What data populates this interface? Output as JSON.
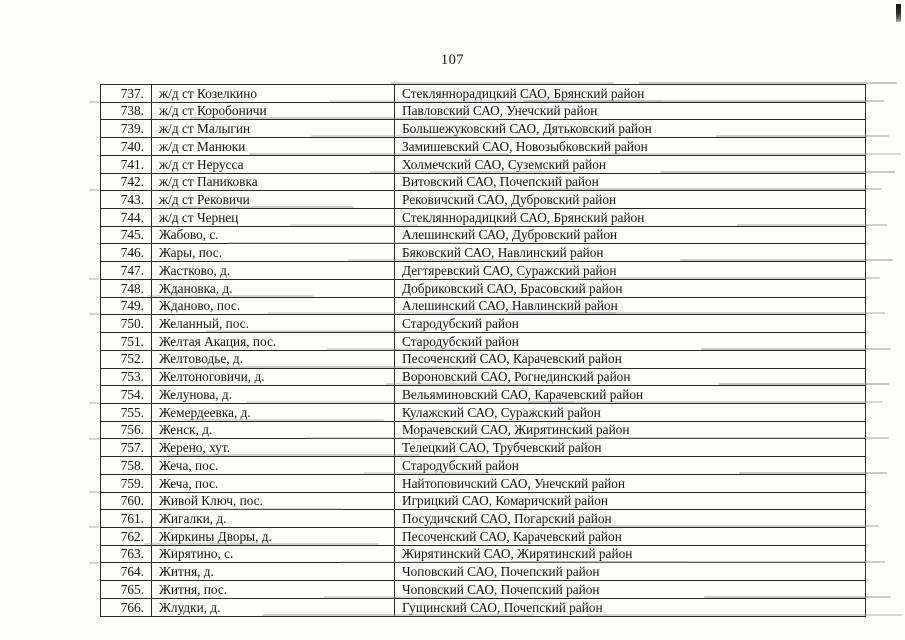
{
  "page": {
    "number": "107"
  },
  "table": {
    "rows": [
      {
        "num": "737.",
        "name": "ж/д ст Козелкино",
        "district": "Стекляннорадицкий САО, Брянский район"
      },
      {
        "num": "738.",
        "name": "ж/д ст Коробоничи",
        "district": "Павловский САО, Унечский район"
      },
      {
        "num": "739.",
        "name": "ж/д ст Малыгин",
        "district": "Большежуковский САО, Дятьковский район"
      },
      {
        "num": "740.",
        "name": "ж/д ст Манюки",
        "district": "Замишевский САО, Новозыбковский район"
      },
      {
        "num": "741.",
        "name": "ж/д ст Нерусса",
        "district": "Холмечский САО, Суземский район"
      },
      {
        "num": "742.",
        "name": "ж/д ст Паниковка",
        "district": "Витовский САО, Почепский район"
      },
      {
        "num": "743.",
        "name": "ж/д ст Рековичи",
        "district": "Рековичский САО, Дубровский район"
      },
      {
        "num": "744.",
        "name": "ж/д ст Чернец",
        "district": "Стекляннорадицкий САО, Брянский район"
      },
      {
        "num": "745.",
        "name": "Жабово, с.",
        "district": "Алешинский САО, Дубровский район"
      },
      {
        "num": "746.",
        "name": "Жары, пос.",
        "district": "Бяковский САО, Навлинский район"
      },
      {
        "num": "747.",
        "name": "Жастково, д.",
        "district": "Дегтяревский САО, Суражский район"
      },
      {
        "num": "748.",
        "name": "Ждановка, д.",
        "district": "Добриковский САО, Брасовский район"
      },
      {
        "num": "749.",
        "name": "Жданово, пос.",
        "district": "Алешинский САО, Навлинский район"
      },
      {
        "num": "750.",
        "name": "Желанный, пос.",
        "district": "Стародубский район"
      },
      {
        "num": "751.",
        "name": "Желтая Акация, пос.",
        "district": "Стародубский район"
      },
      {
        "num": "752.",
        "name": "Желтоводье, д.",
        "district": "Песоченский САО, Карачевский район"
      },
      {
        "num": "753.",
        "name": "Желтоноговичи, д.",
        "district": "Вороновский САО, Рогнединский район"
      },
      {
        "num": "754.",
        "name": "Желунова, д.",
        "district": "Вельяминовский САО, Карачевский район"
      },
      {
        "num": "755.",
        "name": "Жемердеевка, д.",
        "district": "Кулажский САО, Суражский район"
      },
      {
        "num": "756.",
        "name": "Женск, д.",
        "district": "Морачевский САО, Жирятинский район"
      },
      {
        "num": "757.",
        "name": "Жерено, хут.",
        "district": "Телецкий САО, Трубчевский район"
      },
      {
        "num": "758.",
        "name": "Жеча, пос.",
        "district": "Стародубский район"
      },
      {
        "num": "759.",
        "name": "Жеча, пос.",
        "district": "Найтоповичский САО, Унечский район"
      },
      {
        "num": "760.",
        "name": "Живой Ключ, пос.",
        "district": "Игрицкий САО, Комаричский район"
      },
      {
        "num": "761.",
        "name": "Жигалки, д.",
        "district": "Посудичский САО, Погарский район"
      },
      {
        "num": "762.",
        "name": "Жиркины Дворы, д.",
        "district": "Песоченский САО, Карачевский район"
      },
      {
        "num": "763.",
        "name": "Жирятино, с.",
        "district": "Жирятинский САО, Жирятинский район"
      },
      {
        "num": "764.",
        "name": "Житня, д.",
        "district": "Чоповский САО, Почепский район"
      },
      {
        "num": "765.",
        "name": "Житня, пос.",
        "district": "Чоповский САО, Почепский район"
      },
      {
        "num": "766.",
        "name": "Жлудки, д.",
        "district": "Гущинский САО, Почепский район"
      }
    ]
  }
}
